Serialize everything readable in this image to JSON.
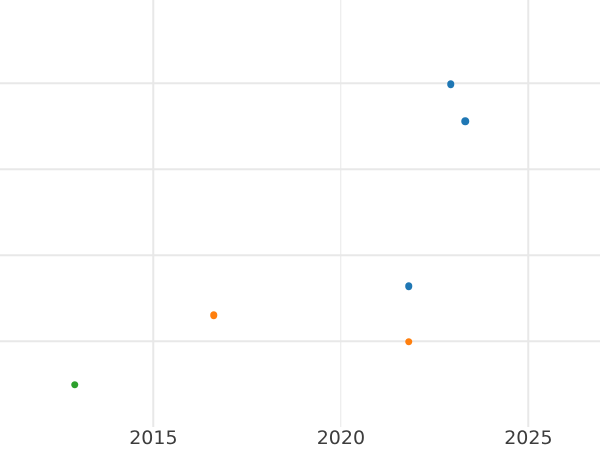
{
  "figure": {
    "background": "#ffffff"
  },
  "chart_data": {
    "type": "scatter",
    "title": "",
    "xlabel": "",
    "ylabel": "",
    "grid": true,
    "legend_position": "none",
    "xlim": [
      2010.91,
      2026.91
    ],
    "ylim": [
      0,
      4.97
    ],
    "x_ticks": [
      {
        "value": 2015,
        "label": "2015"
      },
      {
        "value": 2020,
        "label": "2020"
      },
      {
        "value": 2025,
        "label": "2025"
      }
    ],
    "y_tick_labels_visible": false,
    "y_gridlines": [
      1,
      2,
      3,
      4
    ],
    "series": [
      {
        "name": "blue",
        "color": "#1f77b4",
        "points": [
          {
            "x": 2021.81,
            "y": 1.64
          },
          {
            "x": 2022.93,
            "y": 3.99
          },
          {
            "x": 2023.32,
            "y": 3.56
          }
        ]
      },
      {
        "name": "orange",
        "color": "#ff7f0e",
        "points": [
          {
            "x": 2016.61,
            "y": 1.3
          },
          {
            "x": 2021.81,
            "y": 0.99
          }
        ]
      },
      {
        "name": "green",
        "color": "#2ca02c",
        "points": [
          {
            "x": 2012.9,
            "y": 0.49
          }
        ]
      }
    ],
    "marker_diameter_px": 7.5,
    "colors": {
      "grid": "#e8e8e8",
      "tick_label": "#3d3d3d",
      "background": "#ffffff"
    }
  }
}
